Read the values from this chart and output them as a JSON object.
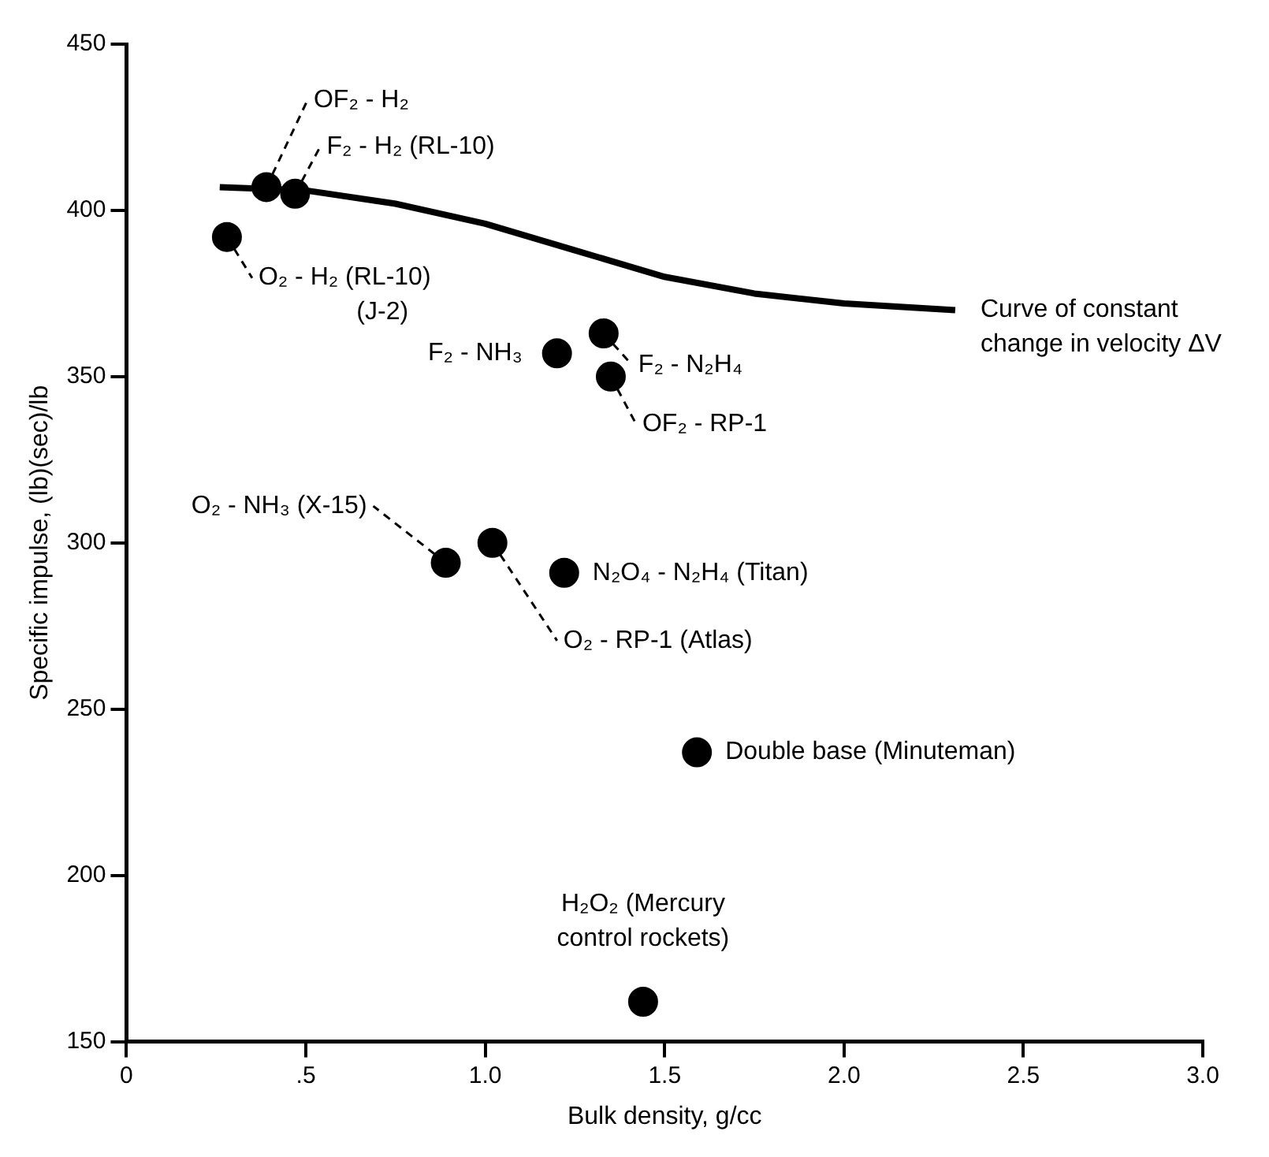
{
  "chart_data": {
    "type": "scatter",
    "xlabel": "Bulk density, g/cc",
    "ylabel": "Specific impulse, (lb)(sec)/lb",
    "xlim": [
      0,
      3
    ],
    "ylim": [
      150,
      450
    ],
    "xticks": [
      0,
      {
        "value": 0.5,
        "label": ".5"
      },
      {
        "value": 1,
        "label": "1.0"
      },
      1.5,
      {
        "value": 2,
        "label": "2.0"
      },
      2.5,
      {
        "value": 3,
        "label": "3.0"
      }
    ],
    "yticks": [
      150,
      200,
      250,
      300,
      350,
      400,
      450
    ],
    "grid": false,
    "legend": false,
    "series": [
      {
        "marker": "circle",
        "color": "#000000",
        "x": [
          0.39,
          0.47,
          0.28,
          1.2,
          1.33,
          1.35,
          0.89,
          1.02,
          1.22,
          1.59,
          1.44
        ],
        "values": [
          407,
          405,
          392,
          357,
          363,
          350,
          294,
          300,
          291,
          237,
          162
        ]
      },
      {
        "type": "line",
        "marker": "none",
        "name": "Curve of constant\nchange in velocity ΔV",
        "color": "#000000",
        "line_style": "solid",
        "x": [
          0.26,
          0.5,
          0.75,
          1.0,
          1.25,
          1.5,
          1.75,
          2.0,
          2.31
        ],
        "values": [
          407,
          406,
          402,
          396,
          388,
          380,
          375,
          372,
          370
        ]
      }
    ],
    "annotations": [
      {
        "text": "OF₂ - H₂",
        "x": 0.39,
        "y": 407
      },
      {
        "text": "F₂ - H₂ (RL-10)",
        "x": 0.47,
        "y": 405
      },
      {
        "text": "O₂ - H₂ (RL-10)\n              (J-2)",
        "x": 0.28,
        "y": 392
      },
      {
        "text": "F₂ - NH₃",
        "x": 1.2,
        "y": 357
      },
      {
        "text": "F₂ - N₂H₄",
        "x": 1.33,
        "y": 363
      },
      {
        "text": "OF₂ - RP-1",
        "x": 1.35,
        "y": 350
      },
      {
        "text": "O₂ - NH₃ (X-15)",
        "x": 0.89,
        "y": 294
      },
      {
        "text": "O₂ - RP-1 (Atlas)",
        "x": 1.02,
        "y": 300
      },
      {
        "text": "N₂O₄ - N₂H₄ (Titan)",
        "x": 1.22,
        "y": 291
      },
      {
        "text": "Double base (Minuteman)",
        "x": 1.59,
        "y": 237
      },
      {
        "text": "H₂O₂ (Mercury\ncontrol rockets)",
        "x": 1.44,
        "y": 162
      }
    ]
  }
}
